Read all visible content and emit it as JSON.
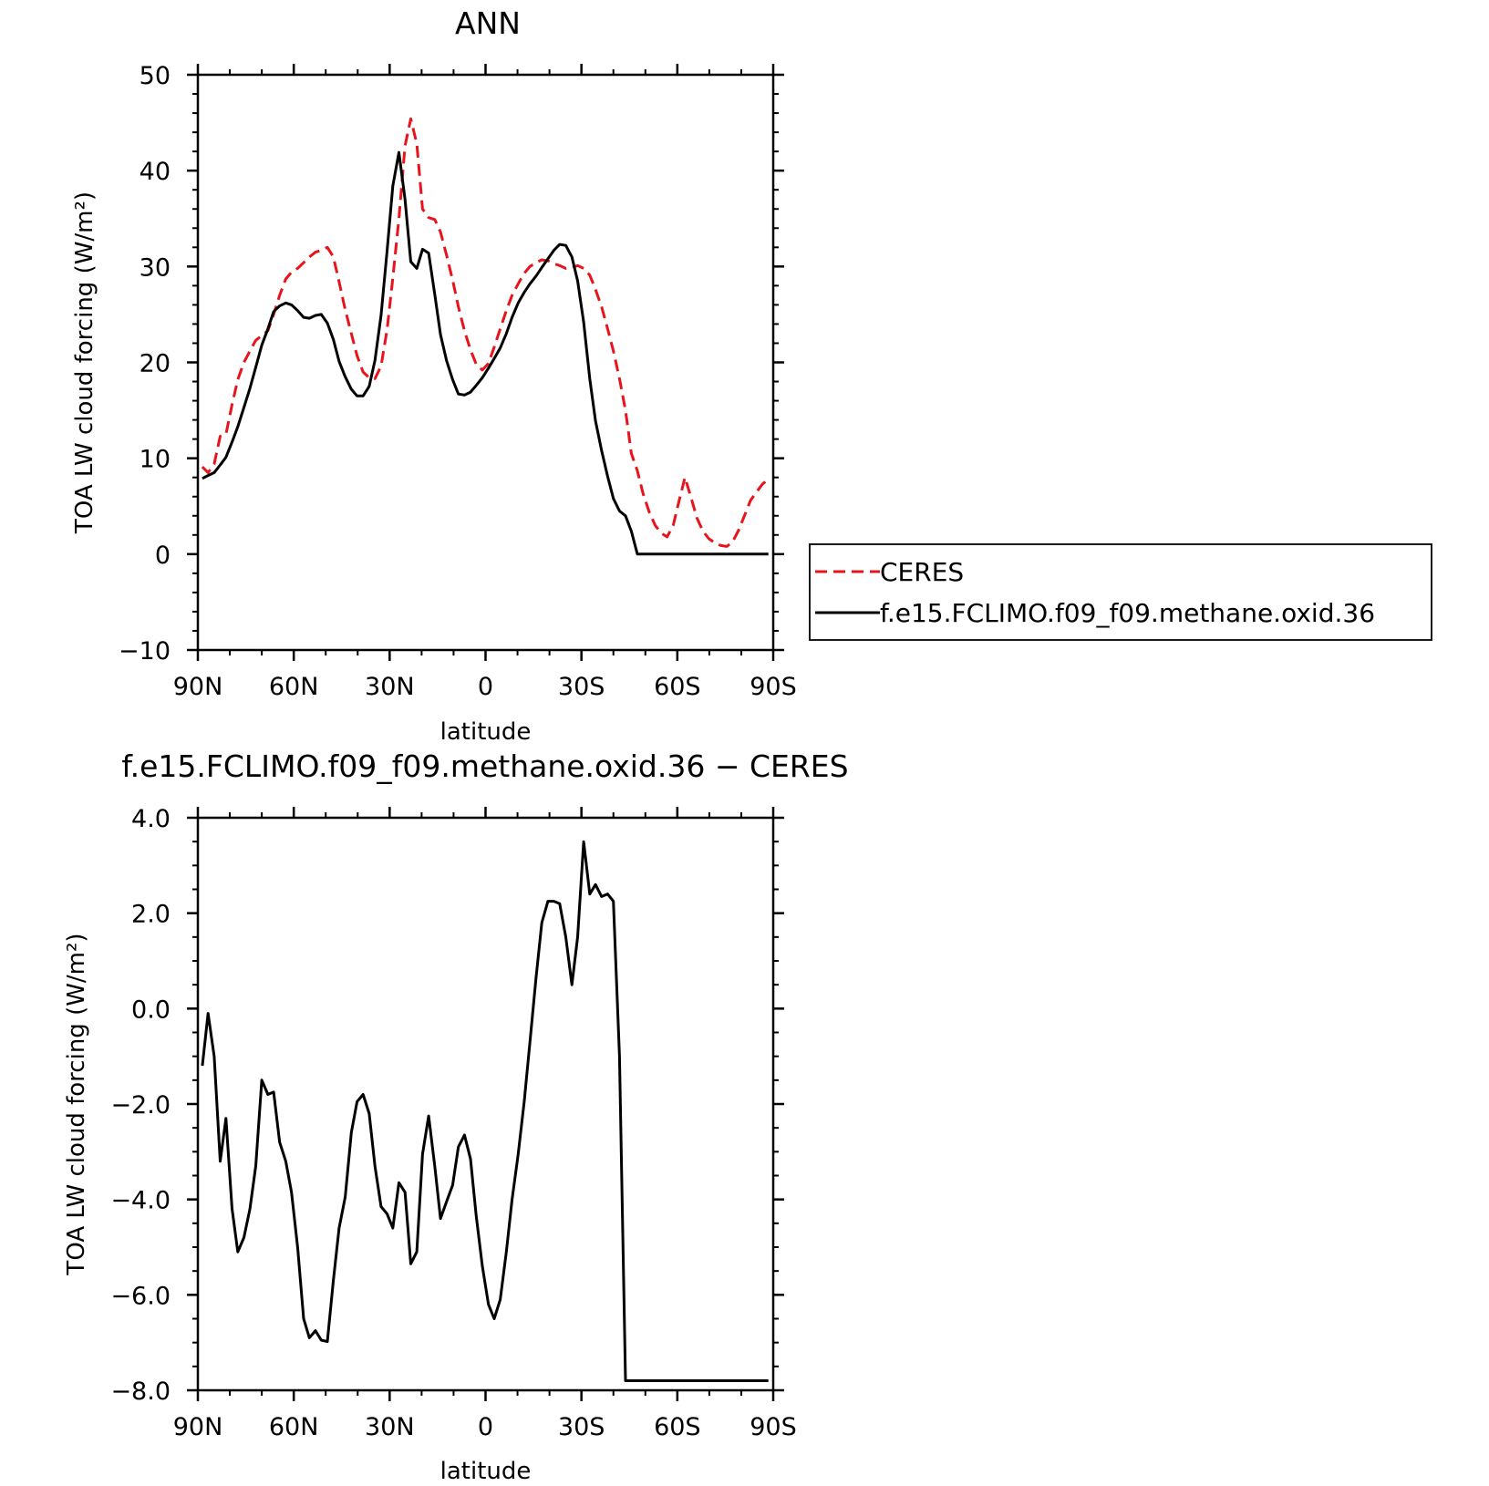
{
  "chart_data": [
    {
      "type": "line",
      "title": "ANN",
      "xlabel": "latitude",
      "ylabel": "TOA LW cloud forcing (W/m²)",
      "xlim": [
        90,
        -90
      ],
      "ylim": [
        -10,
        50
      ],
      "x_tick_values": [
        90,
        60,
        30,
        0,
        -30,
        -60,
        -90
      ],
      "x_tick_labels": [
        "90N",
        "60N",
        "30N",
        "0",
        "30S",
        "60S",
        "90S"
      ],
      "y_tick_values": [
        -10,
        0,
        10,
        20,
        30,
        40,
        50
      ],
      "y_tick_labels": [
        "−10",
        "0",
        "10",
        "20",
        "30",
        "40",
        "50"
      ],
      "legend": "right",
      "grid": false,
      "series": [
        {
          "name": "CERES",
          "color": "#e8141c",
          "style": "dashed",
          "x": [
            88.6,
            86.8,
            84.9,
            83.0,
            81.2,
            79.3,
            77.5,
            75.6,
            73.7,
            71.9,
            70.0,
            68.1,
            66.3,
            64.4,
            62.5,
            60.7,
            58.8,
            56.9,
            55.1,
            53.2,
            51.4,
            49.5,
            47.6,
            45.8,
            43.9,
            42.0,
            40.2,
            38.3,
            36.4,
            34.6,
            32.7,
            30.8,
            29.0,
            27.1,
            25.2,
            23.4,
            21.5,
            19.7,
            17.8,
            15.9,
            14.1,
            12.2,
            10.3,
            8.5,
            6.6,
            4.7,
            2.9,
            1.0,
            -0.9,
            -2.7,
            -4.6,
            -6.5,
            -8.3,
            -10.2,
            -12.1,
            -13.9,
            -15.8,
            -17.6,
            -19.5,
            -21.4,
            -23.2,
            -25.1,
            -27.0,
            -28.8,
            -30.7,
            -32.6,
            -34.4,
            -36.3,
            -38.2,
            -40.0,
            -41.9,
            -43.8,
            -45.6,
            -47.5,
            -49.3,
            -51.2,
            -53.1,
            -54.9,
            -56.8,
            -58.7,
            -60.5,
            -62.4,
            -64.3,
            -66.1,
            -68.0,
            -69.9,
            -71.7,
            -73.6,
            -75.5,
            -77.3,
            -79.2,
            -81.0,
            -82.9,
            -84.8,
            -86.6,
            -88.5
          ],
          "y": [
            9.1,
            8.5,
            9.4,
            12.3,
            12.5,
            15.6,
            18.2,
            20.0,
            21.2,
            22.3,
            22.8,
            23.3,
            25.0,
            27.0,
            28.7,
            29.4,
            29.8,
            30.4,
            31.0,
            31.5,
            31.7,
            32.0,
            31.0,
            28.4,
            25.5,
            23.0,
            20.7,
            19.0,
            18.4,
            18.3,
            19.6,
            23.4,
            28.8,
            35.0,
            42.6,
            45.4,
            42.8,
            36.0,
            35.1,
            34.9,
            33.6,
            31.2,
            28.6,
            25.8,
            23.3,
            21.3,
            19.8,
            19.2,
            19.9,
            21.6,
            23.5,
            25.4,
            27.0,
            28.2,
            29.3,
            30.0,
            30.4,
            30.7,
            30.6,
            30.3,
            30.1,
            29.8,
            29.9,
            30.1,
            29.8,
            29.1,
            27.6,
            25.8,
            23.5,
            21.2,
            18.3,
            15.0,
            10.5,
            8.7,
            6.3,
            4.4,
            3.0,
            2.2,
            1.8,
            3.0,
            5.5,
            8.0,
            5.9,
            3.8,
            2.4,
            1.6,
            1.2,
            0.9,
            0.8,
            1.3,
            2.5,
            4.0,
            5.6,
            6.5,
            7.3,
            7.8
          ]
        },
        {
          "name": "f.e15.FCLIMO.f09_f09.methane.oxid.36",
          "color": "#000000",
          "style": "solid",
          "x": [
            88.6,
            86.8,
            84.9,
            83.0,
            81.2,
            79.3,
            77.5,
            75.6,
            73.7,
            71.9,
            70.0,
            68.1,
            66.3,
            64.4,
            62.5,
            60.7,
            58.8,
            56.9,
            55.1,
            53.2,
            51.4,
            49.5,
            47.6,
            45.8,
            43.9,
            42.0,
            40.2,
            38.3,
            36.4,
            34.6,
            32.7,
            30.8,
            29.0,
            27.1,
            25.2,
            23.4,
            21.5,
            19.7,
            17.8,
            15.9,
            14.1,
            12.2,
            10.3,
            8.5,
            6.6,
            4.7,
            2.9,
            1.0,
            -0.9,
            -2.7,
            -4.6,
            -6.5,
            -8.3,
            -10.2,
            -12.1,
            -13.9,
            -15.8,
            -17.6,
            -19.5,
            -21.4,
            -23.2,
            -25.1,
            -27.0,
            -28.8,
            -30.7,
            -32.6,
            -34.4,
            -36.3,
            -38.2,
            -40.0,
            -41.9,
            -43.8,
            -45.6,
            -47.5,
            -49.3,
            -51.2,
            -53.1,
            -54.9,
            -56.8,
            -58.7,
            -60.5,
            -62.4,
            -64.3,
            -66.1,
            -68.0,
            -69.9,
            -71.7,
            -73.6,
            -75.5,
            -77.3,
            -79.2,
            -81.0,
            -82.9,
            -84.8,
            -86.6,
            -88.5
          ],
          "y": [
            7.9,
            8.2,
            8.5,
            9.3,
            10.1,
            11.7,
            13.3,
            15.3,
            17.3,
            19.5,
            21.8,
            23.5,
            25.3,
            25.9,
            26.2,
            26.0,
            25.4,
            24.7,
            24.6,
            24.9,
            25.0,
            24.1,
            22.4,
            20.1,
            18.5,
            17.2,
            16.5,
            16.5,
            17.5,
            20.2,
            24.9,
            31.6,
            38.4,
            41.9,
            37.0,
            30.5,
            29.8,
            31.8,
            31.4,
            27.1,
            22.9,
            20.2,
            18.2,
            16.7,
            16.6,
            16.9,
            17.6,
            18.4,
            19.4,
            20.4,
            21.5,
            23.0,
            24.7,
            26.2,
            27.3,
            28.2,
            29.0,
            29.9,
            30.8,
            31.7,
            32.3,
            32.2,
            31.0,
            28.5,
            24.2,
            18.3,
            13.9,
            10.8,
            8.1,
            5.8,
            4.5,
            4.0,
            2.4,
            0.0,
            0.0,
            0.0,
            0.0,
            0.0,
            0.0,
            0.0,
            0.0,
            0.0,
            0.0,
            0.0,
            0.0,
            0.0,
            0.0,
            0.0,
            0.0,
            0.0,
            0.0,
            0.0,
            0.0,
            0.0,
            0.0,
            0.0
          ]
        }
      ]
    },
    {
      "type": "line",
      "title": "f.e15.FCLIMO.f09_f09.methane.oxid.36 − CERES",
      "xlabel": "latitude",
      "ylabel": "TOA LW cloud forcing (W/m²)",
      "xlim": [
        90,
        -90
      ],
      "ylim": [
        -8,
        4
      ],
      "x_tick_values": [
        90,
        60,
        30,
        0,
        -30,
        -60,
        -90
      ],
      "x_tick_labels": [
        "90N",
        "60N",
        "30N",
        "0",
        "30S",
        "60S",
        "90S"
      ],
      "y_tick_values": [
        -8,
        -6,
        -4,
        -2,
        0,
        2,
        4
      ],
      "y_tick_labels": [
        "−8.0",
        "−6.0",
        "−4.0",
        "−2.0",
        "0.0",
        "2.0",
        "4.0"
      ],
      "grid": false,
      "series": [
        {
          "color": "#000000",
          "style": "solid",
          "x": [
            88.6,
            86.8,
            84.9,
            83.0,
            81.2,
            79.3,
            77.5,
            75.6,
            73.7,
            71.9,
            70.0,
            68.1,
            66.3,
            64.4,
            62.5,
            60.7,
            58.8,
            56.9,
            55.1,
            53.2,
            51.4,
            49.5,
            47.6,
            45.8,
            43.9,
            42.0,
            40.2,
            38.3,
            36.4,
            34.6,
            32.7,
            30.8,
            29.0,
            27.1,
            25.2,
            23.4,
            21.5,
            19.7,
            17.8,
            15.9,
            14.1,
            12.2,
            10.3,
            8.5,
            6.6,
            4.7,
            2.9,
            1.0,
            -0.9,
            -2.7,
            -4.6,
            -6.5,
            -8.3,
            -10.2,
            -12.1,
            -13.9,
            -15.8,
            -17.6,
            -19.5,
            -21.4,
            -23.2,
            -25.1,
            -27.0,
            -28.8,
            -30.7,
            -32.6,
            -34.4,
            -36.3,
            -38.2,
            -40.0,
            -41.9,
            -43.8,
            -45.6,
            -47.5,
            -49.3,
            -51.2,
            -53.1,
            -54.9,
            -56.8,
            -58.7,
            -60.5,
            -62.4,
            -64.3,
            -66.1,
            -68.0,
            -69.9,
            -71.7,
            -73.6,
            -75.5,
            -77.3,
            -79.2,
            -81.0,
            -82.9,
            -84.8,
            -86.6,
            -88.5
          ],
          "y": [
            -1.2,
            -0.1,
            -1.0,
            -3.2,
            -2.3,
            -4.2,
            -5.1,
            -4.8,
            -4.2,
            -3.3,
            -1.5,
            -1.8,
            -1.75,
            -2.8,
            -3.2,
            -3.85,
            -5.0,
            -6.5,
            -6.9,
            -6.75,
            -6.95,
            -6.98,
            -5.7,
            -4.6,
            -3.95,
            -2.6,
            -1.95,
            -1.8,
            -2.2,
            -3.3,
            -4.15,
            -4.3,
            -4.6,
            -3.65,
            -3.85,
            -5.35,
            -5.1,
            -3.05,
            -2.25,
            -3.3,
            -4.4,
            -4.05,
            -3.7,
            -2.9,
            -2.65,
            -3.15,
            -4.35,
            -5.4,
            -6.2,
            -6.5,
            -6.1,
            -5.1,
            -4.0,
            -3.05,
            -1.95,
            -0.7,
            0.65,
            1.8,
            2.25,
            2.25,
            2.2,
            1.5,
            0.5,
            1.5,
            3.5,
            2.4,
            2.6,
            2.35,
            2.4,
            2.25,
            -1.0,
            -7.8,
            -7.8,
            -7.8,
            -7.8,
            -7.8,
            -7.8,
            -7.8,
            -7.8,
            -7.8,
            -7.8,
            -7.8,
            -7.8,
            -7.8,
            -7.8,
            -7.8,
            -7.8,
            -7.8,
            -7.8,
            -7.8,
            -7.8,
            -7.8,
            -7.8,
            -7.8,
            -7.8,
            -7.8
          ]
        }
      ]
    }
  ]
}
